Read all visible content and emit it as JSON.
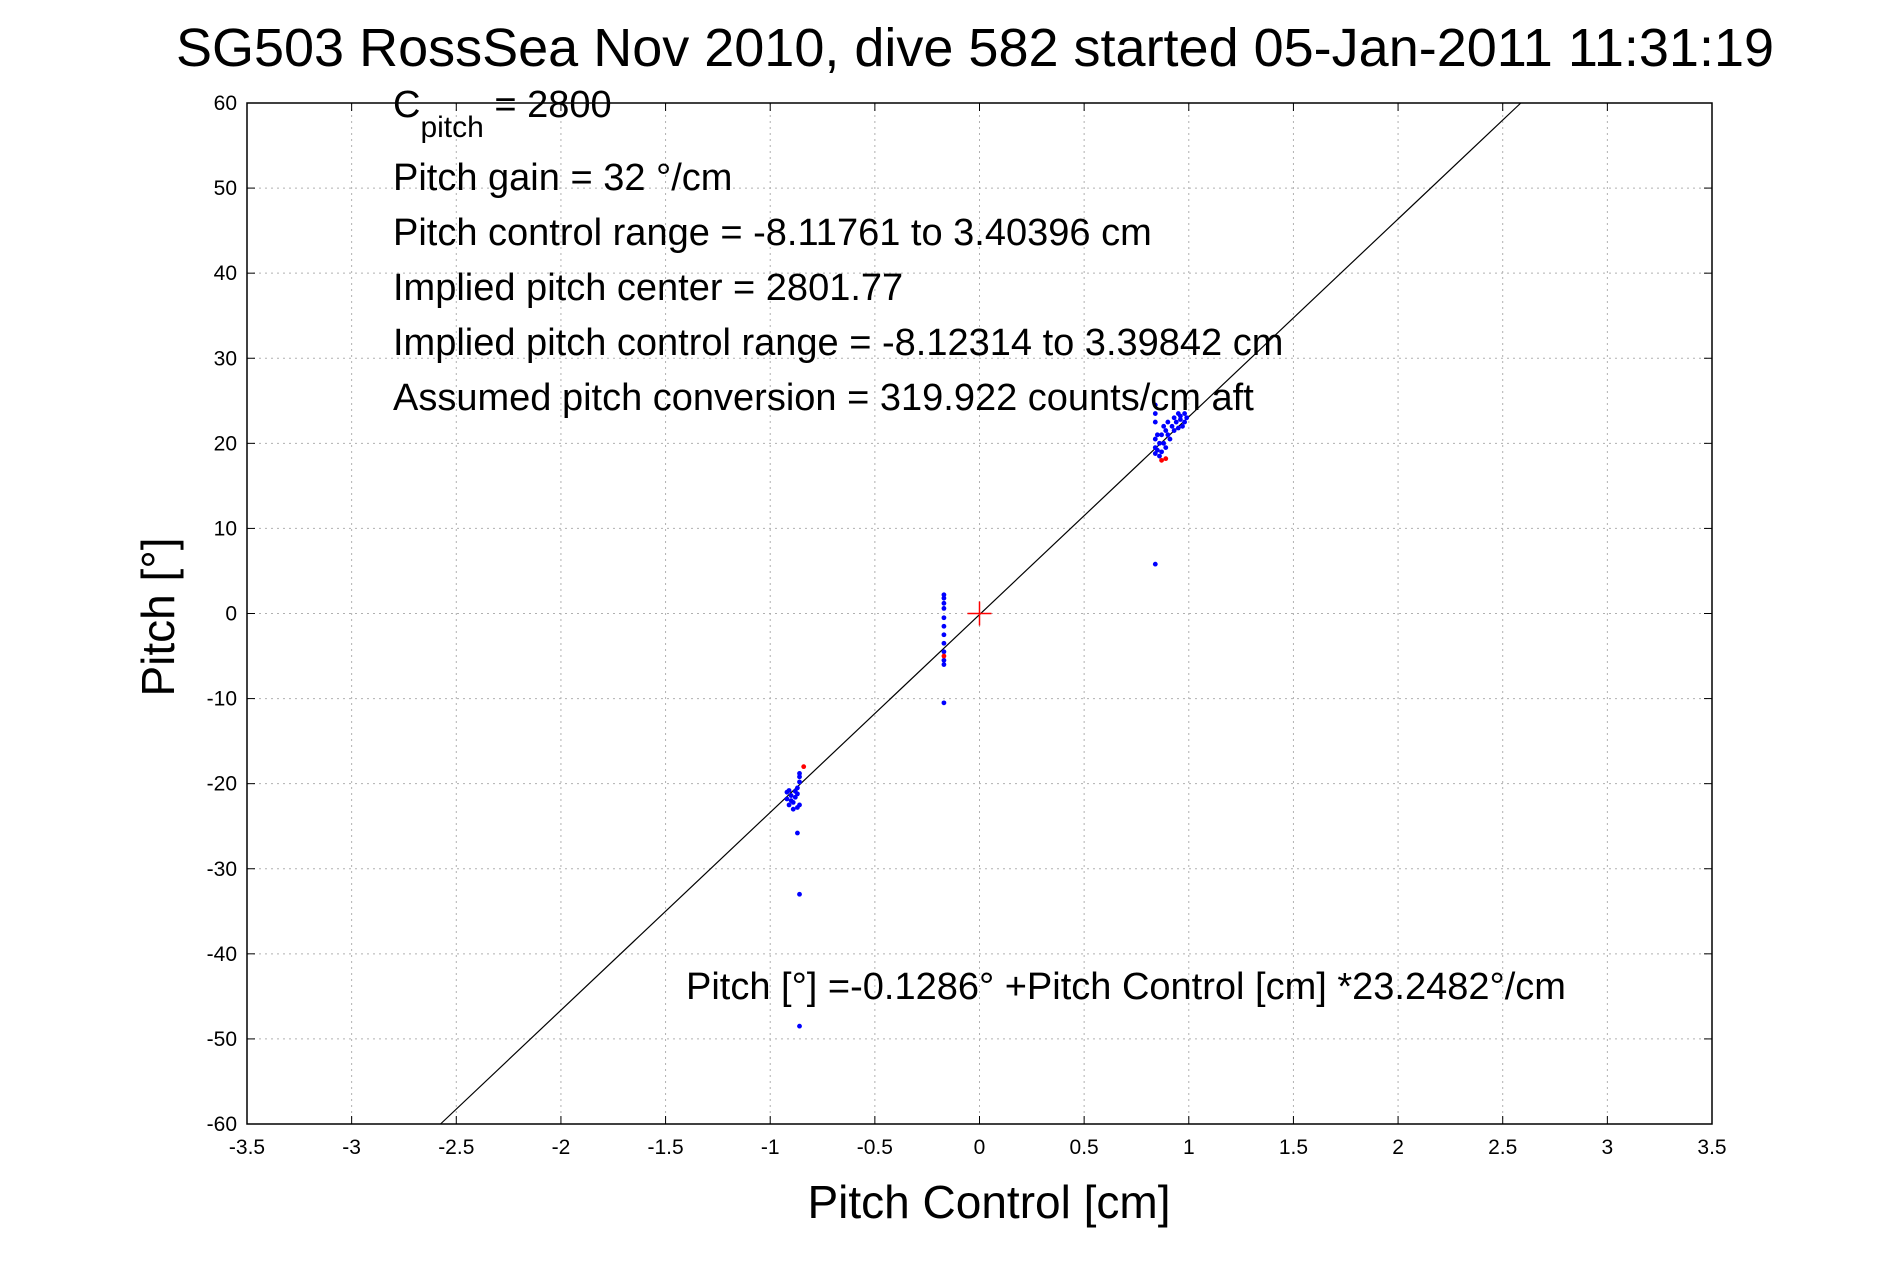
{
  "chart_data": {
    "type": "scatter",
    "title": "SG503 RossSea Nov 2010, dive 582 started 05-Jan-2011 11:31:19",
    "xlabel": "Pitch Control [cm]",
    "ylabel": "Pitch [°]",
    "xlim": [
      -3.5,
      3.5
    ],
    "ylim": [
      -60,
      60
    ],
    "xticks": [
      -3.5,
      -3,
      -2.5,
      -2,
      -1.5,
      -1,
      -0.5,
      0,
      0.5,
      1,
      1.5,
      2,
      2.5,
      3,
      3.5
    ],
    "yticks": [
      60,
      50,
      40,
      30,
      20,
      10,
      0,
      -10,
      -20,
      -30,
      -40,
      -50,
      -60
    ],
    "xtick_labels": [
      "-3.5",
      "-3",
      "-2.5",
      "-2",
      "-1.5",
      "-1",
      "-0.5",
      "0",
      "0.5",
      "1",
      "1.5",
      "2",
      "2.5",
      "3",
      "3.5"
    ],
    "ytick_labels": [
      "60",
      "50",
      "40",
      "30",
      "20",
      "10",
      "0",
      "-10",
      "-20",
      "-30",
      "-40",
      "-50",
      "-60"
    ],
    "grid": true,
    "colors": {
      "good": "#0000ff",
      "flagged": "#ff0000",
      "fit_line": "#000000",
      "center_marker": "#ff0000"
    },
    "fit_line": {
      "intercept": -0.1286,
      "slope": 23.2482
    },
    "center_marker": {
      "x": 0,
      "y": 0
    },
    "series": [
      {
        "color": "#0000ff",
        "points": [
          [
            -0.92,
            -21.0
          ],
          [
            -0.92,
            -21.8
          ],
          [
            -0.91,
            -22.5
          ],
          [
            -0.91,
            -20.8
          ],
          [
            -0.9,
            -22.0
          ],
          [
            -0.9,
            -21.4
          ],
          [
            -0.89,
            -23.0
          ],
          [
            -0.89,
            -22.2
          ],
          [
            -0.88,
            -21.6
          ],
          [
            -0.88,
            -20.9
          ],
          [
            -0.87,
            -22.8
          ],
          [
            -0.87,
            -21.2
          ],
          [
            -0.87,
            -20.5
          ],
          [
            -0.86,
            -19.8
          ],
          [
            -0.86,
            -19.2
          ],
          [
            -0.86,
            -18.8
          ],
          [
            -0.86,
            -22.5
          ],
          [
            -0.87,
            -25.8
          ],
          [
            -0.86,
            -33.0
          ],
          [
            -0.86,
            -48.5
          ],
          [
            -0.17,
            2.2
          ],
          [
            -0.17,
            1.8
          ],
          [
            -0.17,
            1.2
          ],
          [
            -0.17,
            0.6
          ],
          [
            -0.17,
            -0.5
          ],
          [
            -0.17,
            -1.5
          ],
          [
            -0.17,
            -2.5
          ],
          [
            -0.17,
            -3.5
          ],
          [
            -0.17,
            -4.5
          ],
          [
            -0.17,
            -5.5
          ],
          [
            -0.17,
            -6.0
          ],
          [
            -0.17,
            -10.5
          ],
          [
            0.84,
            24.5
          ],
          [
            0.84,
            23.5
          ],
          [
            0.84,
            22.5
          ],
          [
            0.84,
            20.5
          ],
          [
            0.84,
            19.5
          ],
          [
            0.84,
            18.8
          ],
          [
            0.85,
            21.0
          ],
          [
            0.85,
            19.2
          ],
          [
            0.86,
            18.5
          ],
          [
            0.86,
            20.0
          ],
          [
            0.87,
            19.0
          ],
          [
            0.87,
            21.0
          ],
          [
            0.88,
            22.0
          ],
          [
            0.88,
            20.0
          ],
          [
            0.89,
            19.5
          ],
          [
            0.89,
            21.5
          ],
          [
            0.9,
            22.5
          ],
          [
            0.9,
            21.0
          ],
          [
            0.91,
            20.5
          ],
          [
            0.92,
            22.0
          ],
          [
            0.93,
            21.5
          ],
          [
            0.93,
            23.0
          ],
          [
            0.94,
            22.5
          ],
          [
            0.95,
            23.5
          ],
          [
            0.95,
            21.8
          ],
          [
            0.96,
            22.8
          ],
          [
            0.96,
            23.2
          ],
          [
            0.97,
            22.0
          ],
          [
            0.98,
            23.5
          ],
          [
            0.98,
            22.5
          ],
          [
            0.99,
            23.0
          ],
          [
            0.84,
            5.8
          ]
        ]
      },
      {
        "color": "#ff0000",
        "points": [
          [
            -0.84,
            -18.0
          ],
          [
            -0.17,
            -5.0
          ],
          [
            0.87,
            18.0
          ],
          [
            0.89,
            18.2
          ]
        ]
      }
    ],
    "annotations": {
      "cpitch_main": "C",
      "cpitch_sub": "pitch",
      "cpitch_rest": " = 2800",
      "pitch_gain": "Pitch gain = 32 °/cm",
      "control_range": "Pitch control range = -8.11761 to 3.40396 cm",
      "implied_center": "Implied pitch center = 2801.77",
      "implied_range": "Implied pitch control range = -8.12314 to 3.39842 cm",
      "conversion": "Assumed pitch conversion = 319.922 counts/cm aft",
      "fit_equation": "Pitch [°] =-0.1286° +Pitch Control [cm] *23.2482°/cm"
    }
  }
}
